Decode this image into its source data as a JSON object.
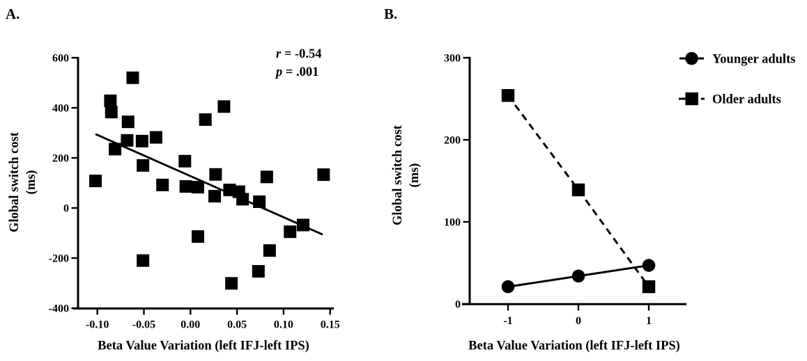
{
  "figure": {
    "panel_a_label": "A.",
    "panel_b_label": "B.",
    "foreground": "#000000",
    "background": "#ffffff"
  },
  "chart_data": [
    {
      "id": "panel-a",
      "panel": "A",
      "type": "scatter",
      "title": "",
      "xlabel": "Beta Value Variation (left IFJ-left IPS)",
      "ylabel": "Global switch cost",
      "ylabel_units": "(ms)",
      "xlim": [
        -0.125,
        0.155
      ],
      "ylim": [
        -400,
        600
      ],
      "xticks": [
        -0.1,
        -0.05,
        0,
        0.05,
        0.1,
        0.15
      ],
      "xtick_labels": [
        "-0.10",
        "-0.05",
        "0.00",
        "0.05",
        "0.10",
        "0.15"
      ],
      "yticks": [
        -400,
        -200,
        0,
        200,
        400,
        600
      ],
      "ytick_labels": [
        "-400",
        "-200",
        "0",
        "200",
        "400",
        "600"
      ],
      "marker": "square",
      "grid": false,
      "annotation": {
        "line1_italic": "r",
        "line1_text": " = -0.54",
        "line2_italic": "p",
        "line2_text": " = .001"
      },
      "points": [
        [
          -0.102,
          108
        ],
        [
          -0.086,
          428
        ],
        [
          -0.085,
          383
        ],
        [
          -0.081,
          235
        ],
        [
          -0.068,
          270
        ],
        [
          -0.067,
          344
        ],
        [
          -0.062,
          520
        ],
        [
          -0.052,
          267
        ],
        [
          -0.051,
          170
        ],
        [
          -0.051,
          -210
        ],
        [
          -0.037,
          282
        ],
        [
          -0.03,
          92
        ],
        [
          -0.006,
          187
        ],
        [
          -0.005,
          86
        ],
        [
          0.008,
          83
        ],
        [
          0.008,
          -114
        ],
        [
          0.016,
          353
        ],
        [
          0.026,
          47
        ],
        [
          0.027,
          134
        ],
        [
          0.036,
          405
        ],
        [
          0.042,
          72
        ],
        [
          0.052,
          65
        ],
        [
          0.056,
          35
        ],
        [
          0.074,
          25
        ],
        [
          0.073,
          -253
        ],
        [
          0.082,
          124
        ],
        [
          0.085,
          -170
        ],
        [
          0.044,
          -301
        ],
        [
          0.107,
          -95
        ],
        [
          0.121,
          -68
        ],
        [
          0.143,
          133
        ]
      ],
      "regression_line": {
        "x1": -0.102,
        "y1": 295,
        "x2": 0.142,
        "y2": -106
      }
    },
    {
      "id": "panel-b",
      "panel": "B",
      "type": "line",
      "title": "",
      "xlabel": "Beta Value Variation (left IFJ-left IPS)",
      "ylabel": "Global switch cost",
      "ylabel_units": "(ms)",
      "xlim": [
        -1.6,
        1.5
      ],
      "ylim": [
        0,
        300
      ],
      "xticks": [
        -1,
        0,
        1
      ],
      "xtick_labels": [
        "-1",
        "0",
        "1"
      ],
      "yticks": [
        0,
        100,
        200,
        300
      ],
      "ytick_labels": [
        "0",
        "100",
        "200",
        "300"
      ],
      "grid": false,
      "legend_position": "top-right",
      "series": [
        {
          "name": "Younger adults",
          "marker": "circle",
          "line_style": "solid",
          "x": [
            -1,
            0,
            1
          ],
          "values": [
            21,
            34,
            47
          ]
        },
        {
          "name": "Older adults",
          "marker": "square",
          "line_style": "dashed",
          "x": [
            -1,
            0,
            1
          ],
          "values": [
            254,
            139,
            21
          ]
        }
      ]
    }
  ]
}
